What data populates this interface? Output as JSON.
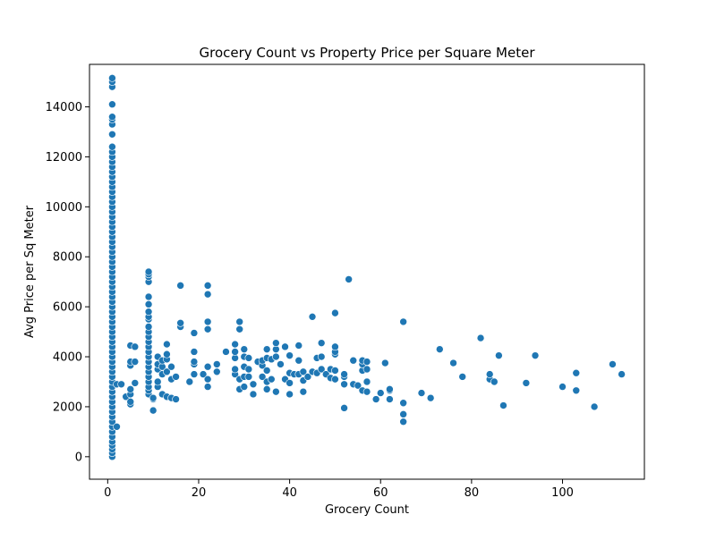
{
  "chart_data": {
    "type": "scatter",
    "title": "Grocery Count vs Property Price per Square Meter",
    "xlabel": "Grocery Count",
    "ylabel": "Avg Price per Sq Meter",
    "xlim": [
      -4,
      118
    ],
    "ylim": [
      -900,
      15700
    ],
    "xticks": [
      0,
      20,
      40,
      60,
      80,
      100
    ],
    "yticks": [
      0,
      2000,
      4000,
      6000,
      8000,
      10000,
      12000,
      14000
    ],
    "grid": false,
    "legend": "none",
    "marker_color": "#1f77b4",
    "points": [
      [
        1,
        0
      ],
      [
        1,
        150
      ],
      [
        1,
        300
      ],
      [
        1,
        450
      ],
      [
        1,
        600
      ],
      [
        1,
        800
      ],
      [
        1,
        1000
      ],
      [
        1,
        1200
      ],
      [
        1,
        1400
      ],
      [
        1,
        1600
      ],
      [
        1,
        1800
      ],
      [
        1,
        2000
      ],
      [
        1,
        2200
      ],
      [
        1,
        2400
      ],
      [
        1,
        2600
      ],
      [
        1,
        2800
      ],
      [
        1,
        3000
      ],
      [
        1,
        3200
      ],
      [
        1,
        3400
      ],
      [
        1,
        3600
      ],
      [
        1,
        3800
      ],
      [
        1,
        4000
      ],
      [
        1,
        4200
      ],
      [
        1,
        4400
      ],
      [
        1,
        4600
      ],
      [
        1,
        4800
      ],
      [
        1,
        5000
      ],
      [
        1,
        5200
      ],
      [
        1,
        5400
      ],
      [
        1,
        5600
      ],
      [
        1,
        5800
      ],
      [
        1,
        6000
      ],
      [
        1,
        6200
      ],
      [
        1,
        6400
      ],
      [
        1,
        6600
      ],
      [
        1,
        6800
      ],
      [
        1,
        7000
      ],
      [
        1,
        7200
      ],
      [
        1,
        7400
      ],
      [
        1,
        7600
      ],
      [
        1,
        7800
      ],
      [
        1,
        8000
      ],
      [
        1,
        8200
      ],
      [
        1,
        8400
      ],
      [
        1,
        8600
      ],
      [
        1,
        8800
      ],
      [
        1,
        9000
      ],
      [
        1,
        9200
      ],
      [
        1,
        9400
      ],
      [
        1,
        9600
      ],
      [
        1,
        9800
      ],
      [
        1,
        10000
      ],
      [
        1,
        10200
      ],
      [
        1,
        10400
      ],
      [
        1,
        10600
      ],
      [
        1,
        10800
      ],
      [
        1,
        11000
      ],
      [
        1,
        11200
      ],
      [
        1,
        11400
      ],
      [
        1,
        11600
      ],
      [
        1,
        11800
      ],
      [
        1,
        12000
      ],
      [
        1,
        12200
      ],
      [
        1,
        12400
      ],
      [
        1,
        12900
      ],
      [
        1,
        13300
      ],
      [
        1,
        13500
      ],
      [
        1,
        13600
      ],
      [
        1,
        14100
      ],
      [
        1,
        14800
      ],
      [
        1,
        15000
      ],
      [
        1,
        15150
      ],
      [
        2,
        2900
      ],
      [
        2,
        1200
      ],
      [
        3,
        2900
      ],
      [
        4,
        2400
      ],
      [
        5,
        2100
      ],
      [
        5,
        2200
      ],
      [
        5,
        2500
      ],
      [
        5,
        2700
      ],
      [
        5,
        3650
      ],
      [
        5,
        3800
      ],
      [
        5,
        4450
      ],
      [
        6,
        2950
      ],
      [
        6,
        3800
      ],
      [
        6,
        4400
      ],
      [
        9,
        2500
      ],
      [
        9,
        2650
      ],
      [
        9,
        2800
      ],
      [
        9,
        3000
      ],
      [
        9,
        3200
      ],
      [
        9,
        3400
      ],
      [
        9,
        3600
      ],
      [
        9,
        3800
      ],
      [
        9,
        4000
      ],
      [
        9,
        4200
      ],
      [
        9,
        4400
      ],
      [
        9,
        4600
      ],
      [
        9,
        4800
      ],
      [
        9,
        5000
      ],
      [
        9,
        5200
      ],
      [
        9,
        5500
      ],
      [
        9,
        5600
      ],
      [
        9,
        5800
      ],
      [
        9,
        6100
      ],
      [
        9,
        6400
      ],
      [
        9,
        7000
      ],
      [
        9,
        7200
      ],
      [
        9,
        7300
      ],
      [
        9,
        7400
      ],
      [
        10,
        1850
      ],
      [
        10,
        2300
      ],
      [
        10,
        2350
      ],
      [
        11,
        2800
      ],
      [
        11,
        3000
      ],
      [
        11,
        3500
      ],
      [
        11,
        3700
      ],
      [
        11,
        4000
      ],
      [
        12,
        2500
      ],
      [
        12,
        3300
      ],
      [
        12,
        3600
      ],
      [
        12,
        3850
      ],
      [
        13,
        2400
      ],
      [
        13,
        3400
      ],
      [
        13,
        3900
      ],
      [
        13,
        4100
      ],
      [
        13,
        4500
      ],
      [
        14,
        2350
      ],
      [
        14,
        3100
      ],
      [
        14,
        3600
      ],
      [
        15,
        2300
      ],
      [
        15,
        3200
      ],
      [
        16,
        5200
      ],
      [
        16,
        5350
      ],
      [
        16,
        6850
      ],
      [
        18,
        3000
      ],
      [
        19,
        3300
      ],
      [
        19,
        3700
      ],
      [
        19,
        3800
      ],
      [
        19,
        4200
      ],
      [
        19,
        4950
      ],
      [
        21,
        3300
      ],
      [
        22,
        2800
      ],
      [
        22,
        3100
      ],
      [
        22,
        3600
      ],
      [
        22,
        5100
      ],
      [
        22,
        5400
      ],
      [
        22,
        6500
      ],
      [
        22,
        6850
      ],
      [
        24,
        3400
      ],
      [
        24,
        3700
      ],
      [
        26,
        4200
      ],
      [
        28,
        3300
      ],
      [
        28,
        3500
      ],
      [
        28,
        3950
      ],
      [
        28,
        4200
      ],
      [
        28,
        4500
      ],
      [
        29,
        2700
      ],
      [
        29,
        3100
      ],
      [
        29,
        5100
      ],
      [
        29,
        5400
      ],
      [
        30,
        2800
      ],
      [
        30,
        3200
      ],
      [
        30,
        3600
      ],
      [
        30,
        4000
      ],
      [
        30,
        4300
      ],
      [
        31,
        3200
      ],
      [
        31,
        3500
      ],
      [
        31,
        3950
      ],
      [
        32,
        2500
      ],
      [
        32,
        2900
      ],
      [
        33,
        3800
      ],
      [
        34,
        3200
      ],
      [
        34,
        3650
      ],
      [
        34,
        3850
      ],
      [
        35,
        2700
      ],
      [
        35,
        3000
      ],
      [
        35,
        3450
      ],
      [
        35,
        3950
      ],
      [
        35,
        4300
      ],
      [
        36,
        3100
      ],
      [
        36,
        3900
      ],
      [
        37,
        2600
      ],
      [
        37,
        4000
      ],
      [
        37,
        4300
      ],
      [
        37,
        4550
      ],
      [
        38,
        3700
      ],
      [
        39,
        3100
      ],
      [
        39,
        4400
      ],
      [
        40,
        2500
      ],
      [
        40,
        2950
      ],
      [
        40,
        3350
      ],
      [
        40,
        4050
      ],
      [
        41,
        3300
      ],
      [
        42,
        3300
      ],
      [
        42,
        3850
      ],
      [
        42,
        4450
      ],
      [
        43,
        2600
      ],
      [
        43,
        3050
      ],
      [
        43,
        3400
      ],
      [
        44,
        3200
      ],
      [
        45,
        3400
      ],
      [
        45,
        5600
      ],
      [
        46,
        3350
      ],
      [
        46,
        3950
      ],
      [
        47,
        3500
      ],
      [
        47,
        4000
      ],
      [
        47,
        4550
      ],
      [
        48,
        3300
      ],
      [
        49,
        3150
      ],
      [
        49,
        3500
      ],
      [
        50,
        3100
      ],
      [
        50,
        3450
      ],
      [
        50,
        4100
      ],
      [
        50,
        4200
      ],
      [
        50,
        4400
      ],
      [
        50,
        5750
      ],
      [
        52,
        1950
      ],
      [
        52,
        2900
      ],
      [
        52,
        3200
      ],
      [
        52,
        3300
      ],
      [
        53,
        7100
      ],
      [
        54,
        2900
      ],
      [
        54,
        3850
      ],
      [
        55,
        2850
      ],
      [
        56,
        2650
      ],
      [
        56,
        3450
      ],
      [
        56,
        3700
      ],
      [
        56,
        3850
      ],
      [
        57,
        2600
      ],
      [
        57,
        3000
      ],
      [
        57,
        3500
      ],
      [
        57,
        3800
      ],
      [
        59,
        2300
      ],
      [
        60,
        2550
      ],
      [
        61,
        3750
      ],
      [
        62,
        2300
      ],
      [
        62,
        2650
      ],
      [
        62,
        2700
      ],
      [
        65,
        1400
      ],
      [
        65,
        1700
      ],
      [
        65,
        2150
      ],
      [
        65,
        5400
      ],
      [
        69,
        2550
      ],
      [
        71,
        2350
      ],
      [
        73,
        4300
      ],
      [
        76,
        3750
      ],
      [
        78,
        3200
      ],
      [
        82,
        4750
      ],
      [
        84,
        3100
      ],
      [
        84,
        3300
      ],
      [
        85,
        3000
      ],
      [
        86,
        4050
      ],
      [
        87,
        2050
      ],
      [
        92,
        2950
      ],
      [
        94,
        4050
      ],
      [
        100,
        2800
      ],
      [
        103,
        2650
      ],
      [
        103,
        3350
      ],
      [
        107,
        2000
      ],
      [
        111,
        3700
      ],
      [
        113,
        3300
      ]
    ]
  }
}
